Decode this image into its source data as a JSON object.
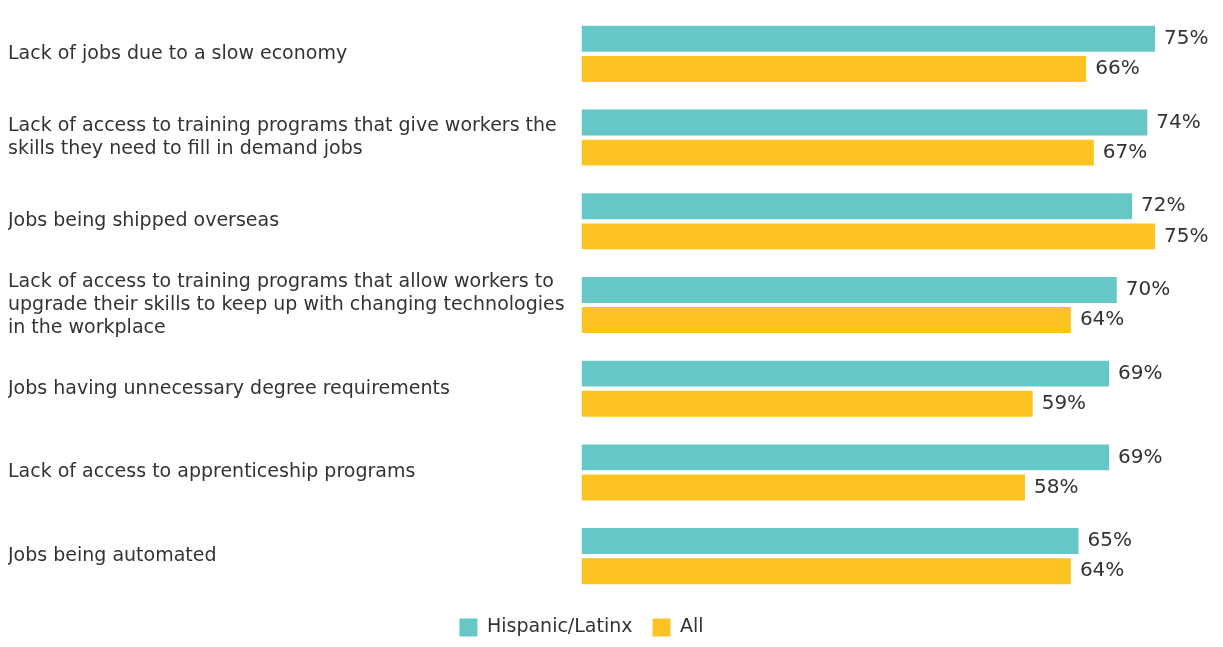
{
  "chart_data": {
    "type": "bar",
    "orientation": "horizontal",
    "categories": [
      "Lack of jobs due to a slow economy",
      "Lack of access to training programs that give workers the skills they need to fill in demand jobs",
      "Jobs being shipped overseas",
      "Lack of access to training programs that allow workers to upgrade their skills to keep up with changing technologies in the workplace",
      "Jobs having unnecessary degree requirements",
      "Lack of access to apprenticeship programs",
      "Jobs being automated"
    ],
    "series": [
      {
        "name": "Hispanic/Latinx",
        "color": "#66c8c6",
        "values": [
          75,
          74,
          72,
          70,
          69,
          69,
          65
        ],
        "value_labels": [
          "75%",
          "74%",
          "72%",
          "70%",
          "69%",
          "69%",
          "65%"
        ]
      },
      {
        "name": "All",
        "color": "#fdc322",
        "values": [
          66,
          67,
          75,
          64,
          59,
          58,
          64
        ],
        "value_labels": [
          "66%",
          "67%",
          "75%",
          "64%",
          "59%",
          "58%",
          "64%"
        ]
      }
    ],
    "legend": "bottom",
    "tick_labels": "y"
  }
}
